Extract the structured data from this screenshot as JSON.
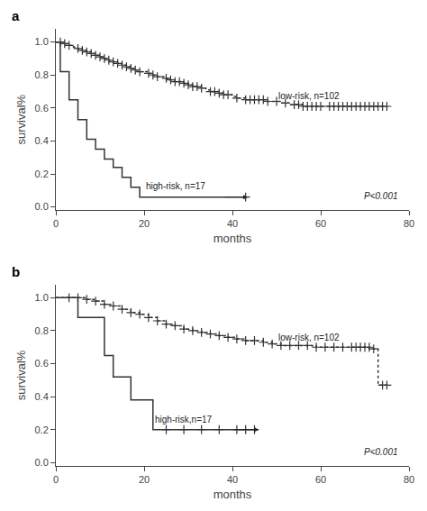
{
  "chart_data": [
    {
      "type": "step",
      "title": "a",
      "xlabel": "months",
      "ylabel": "survival%",
      "xlim": [
        0,
        80
      ],
      "ylim": [
        -0.02,
        1.08
      ],
      "xticks": [
        0,
        20,
        40,
        60,
        80
      ],
      "yticks": [
        {
          "value": 0.0,
          "label": "0.0"
        },
        {
          "value": 0.2,
          "label": "0.2"
        },
        {
          "value": 0.4,
          "label": "0.4"
        },
        {
          "value": 0.6,
          "label": "0.6"
        },
        {
          "value": 0.8,
          "label": "0.8"
        },
        {
          "value": 1.0,
          "label": "1.0"
        }
      ],
      "grid": false,
      "series": [
        {
          "line_style": "dotted",
          "marker": "plus",
          "color": "#333333",
          "x": [
            0,
            1,
            2,
            3,
            4,
            5,
            6,
            7,
            8,
            9,
            10,
            11,
            12,
            13,
            14,
            15,
            16,
            17,
            18,
            19,
            20,
            21,
            22,
            23,
            24,
            25,
            26,
            27,
            28,
            29,
            30,
            31,
            32,
            33,
            34,
            35,
            36,
            37,
            38,
            39,
            40,
            41,
            42,
            43,
            44,
            45,
            46,
            47,
            48,
            50,
            51,
            52,
            53,
            54,
            55,
            56,
            57,
            58,
            59,
            60,
            61,
            62,
            63,
            64,
            65,
            66,
            67,
            68,
            69,
            70,
            71,
            72,
            73,
            74,
            75
          ],
          "values": [
            1.0,
            1.0,
            0.99,
            0.98,
            0.97,
            0.96,
            0.95,
            0.94,
            0.93,
            0.92,
            0.91,
            0.9,
            0.89,
            0.88,
            0.87,
            0.86,
            0.85,
            0.84,
            0.83,
            0.82,
            0.82,
            0.81,
            0.8,
            0.79,
            0.79,
            0.78,
            0.77,
            0.76,
            0.76,
            0.75,
            0.74,
            0.73,
            0.73,
            0.72,
            0.71,
            0.7,
            0.7,
            0.69,
            0.68,
            0.68,
            0.67,
            0.66,
            0.66,
            0.65,
            0.65,
            0.65,
            0.65,
            0.65,
            0.64,
            0.64,
            0.63,
            0.63,
            0.62,
            0.62,
            0.62,
            0.61,
            0.61,
            0.61,
            0.61,
            0.61,
            0.61,
            0.61,
            0.61,
            0.61,
            0.61,
            0.61,
            0.61,
            0.61,
            0.61,
            0.61,
            0.61,
            0.61,
            0.61,
            0.61,
            0.61
          ],
          "censor_x": [
            1,
            2,
            3,
            5,
            6,
            7,
            8,
            9,
            10,
            11,
            12,
            13,
            14,
            15,
            16,
            17,
            18,
            19,
            21,
            22,
            23,
            25,
            26,
            27,
            28,
            29,
            30,
            31,
            32,
            33,
            35,
            36,
            37,
            38,
            39,
            41,
            43,
            44,
            45,
            46,
            47,
            48,
            50,
            52,
            54,
            55,
            56,
            57,
            58,
            59,
            60,
            62,
            63,
            64,
            65,
            66,
            67,
            68,
            69,
            70,
            71,
            72,
            73,
            74,
            75
          ],
          "censor_values": [
            1.0,
            0.99,
            0.98,
            0.96,
            0.95,
            0.94,
            0.93,
            0.92,
            0.91,
            0.9,
            0.89,
            0.88,
            0.87,
            0.86,
            0.85,
            0.84,
            0.83,
            0.82,
            0.81,
            0.8,
            0.79,
            0.78,
            0.77,
            0.76,
            0.76,
            0.75,
            0.74,
            0.73,
            0.73,
            0.72,
            0.7,
            0.7,
            0.69,
            0.68,
            0.68,
            0.66,
            0.65,
            0.65,
            0.65,
            0.65,
            0.65,
            0.64,
            0.64,
            0.63,
            0.62,
            0.62,
            0.61,
            0.61,
            0.61,
            0.61,
            0.61,
            0.61,
            0.61,
            0.61,
            0.61,
            0.61,
            0.61,
            0.61,
            0.61,
            0.61,
            0.61,
            0.61,
            0.61,
            0.61,
            0.61
          ]
        },
        {
          "line_style": "solid",
          "marker": "plus",
          "color": "#333333",
          "x": [
            0,
            1,
            3,
            5,
            7,
            9,
            11,
            13,
            15,
            17,
            19,
            21,
            23,
            25,
            27,
            29,
            31,
            33,
            35,
            37,
            39,
            41,
            43
          ],
          "values": [
            1.0,
            0.82,
            0.65,
            0.53,
            0.41,
            0.35,
            0.29,
            0.24,
            0.18,
            0.12,
            0.06,
            0.06,
            0.06,
            0.06,
            0.06,
            0.06,
            0.06,
            0.06,
            0.06,
            0.06,
            0.06,
            0.06,
            0.06
          ],
          "censor_x": [
            43
          ],
          "censor_values": [
            0.06
          ]
        }
      ],
      "annotations": [
        {
          "text": "low-risk, n=102",
          "x": 50,
          "y": 0.63,
          "color": "#222222"
        },
        {
          "text": "high-risk, n=17",
          "x": 20,
          "y": 0.085,
          "color": "#222222",
          "arrow": {
            "from": [
              38,
              0.06
            ],
            "to": [
              43.5,
              0.06
            ]
          }
        },
        {
          "text": "P<0.001",
          "x": 78,
          "y": 0.025,
          "color": "#222222",
          "italic": true,
          "align": "right"
        }
      ]
    },
    {
      "type": "step",
      "title": "b",
      "xlabel": "months",
      "ylabel": "survival%",
      "xlim": [
        0,
        80
      ],
      "ylim": [
        -0.02,
        1.08
      ],
      "xticks": [
        0,
        20,
        40,
        60,
        80
      ],
      "yticks": [
        {
          "value": 0.0,
          "label": "0.0"
        },
        {
          "value": 0.2,
          "label": "0.2"
        },
        {
          "value": 0.4,
          "label": "0.4"
        },
        {
          "value": 0.6,
          "label": "0.6"
        },
        {
          "value": 0.8,
          "label": "0.8"
        },
        {
          "value": 1.0,
          "label": "1.0"
        }
      ],
      "grid": false,
      "series": [
        {
          "line_style": "dotted",
          "marker": "plus",
          "color": "#333333",
          "x": [
            0,
            3,
            5,
            7,
            9,
            11,
            13,
            15,
            17,
            19,
            21,
            23,
            25,
            27,
            29,
            31,
            33,
            35,
            37,
            39,
            41,
            43,
            45,
            47,
            49,
            51,
            53,
            55,
            57,
            59,
            61,
            63,
            65,
            66,
            67,
            68,
            69,
            70,
            71,
            72,
            73,
            74,
            75
          ],
          "values": [
            1.0,
            1.0,
            1.0,
            0.99,
            0.98,
            0.96,
            0.95,
            0.93,
            0.91,
            0.9,
            0.88,
            0.86,
            0.84,
            0.83,
            0.81,
            0.8,
            0.79,
            0.78,
            0.77,
            0.76,
            0.75,
            0.74,
            0.74,
            0.73,
            0.72,
            0.71,
            0.71,
            0.71,
            0.71,
            0.7,
            0.7,
            0.7,
            0.7,
            0.7,
            0.7,
            0.7,
            0.7,
            0.7,
            0.69,
            0.69,
            0.47,
            0.47,
            0.47
          ],
          "censor_x": [
            3,
            5,
            7,
            9,
            11,
            13,
            15,
            17,
            19,
            21,
            23,
            25,
            27,
            29,
            31,
            33,
            35,
            37,
            39,
            41,
            43,
            45,
            47,
            49,
            51,
            53,
            55,
            57,
            59,
            61,
            63,
            65,
            67,
            68,
            69,
            70,
            71,
            72,
            74,
            75
          ],
          "censor_values": [
            1.0,
            1.0,
            0.99,
            0.98,
            0.96,
            0.95,
            0.93,
            0.91,
            0.9,
            0.88,
            0.86,
            0.84,
            0.83,
            0.81,
            0.8,
            0.79,
            0.78,
            0.77,
            0.76,
            0.75,
            0.74,
            0.74,
            0.73,
            0.72,
            0.71,
            0.71,
            0.71,
            0.71,
            0.7,
            0.7,
            0.7,
            0.7,
            0.7,
            0.7,
            0.7,
            0.7,
            0.7,
            0.69,
            0.47,
            0.47
          ]
        },
        {
          "line_style": "solid",
          "marker": "plus",
          "color": "#333333",
          "x": [
            0,
            1,
            5,
            9,
            11,
            13,
            17,
            20,
            22,
            25,
            27,
            29,
            31,
            33,
            35,
            37,
            39,
            41,
            43,
            45
          ],
          "values": [
            1.0,
            1.0,
            0.88,
            0.88,
            0.65,
            0.52,
            0.38,
            0.38,
            0.2,
            0.2,
            0.2,
            0.2,
            0.2,
            0.2,
            0.2,
            0.2,
            0.2,
            0.2,
            0.2,
            0.2
          ],
          "censor_x": [
            25,
            29,
            33,
            37,
            41,
            43,
            45
          ],
          "censor_values": [
            0.2,
            0.2,
            0.2,
            0.2,
            0.2,
            0.2,
            0.2
          ]
        }
      ],
      "annotations": [
        {
          "text": "low-risk, n=102",
          "x": 50,
          "y": 0.72,
          "color": "#222222"
        },
        {
          "text": "high-risk,n=17",
          "x": 22,
          "y": 0.22,
          "color": "#222222",
          "arrow": {
            "from": [
              40,
              0.2
            ],
            "to": [
              46,
              0.2
            ]
          }
        },
        {
          "text": "P<0.001",
          "x": 78,
          "y": 0.025,
          "color": "#222222",
          "italic": true,
          "align": "right"
        }
      ]
    }
  ]
}
